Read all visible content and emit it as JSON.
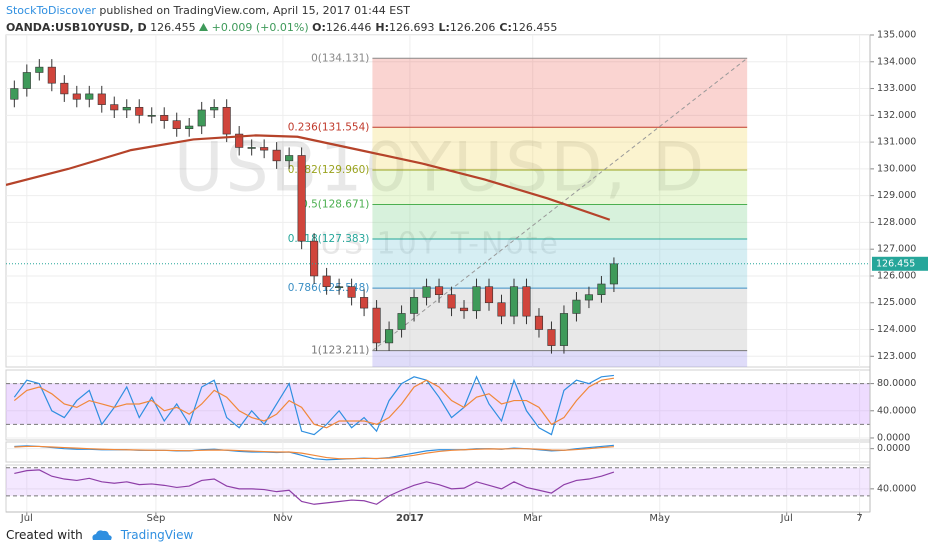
{
  "header": {
    "author": "StockToDiscover",
    "published": "published on TradingView.com, April 15, 2017 01:44 EST",
    "symbol": "OANDA:USB10YUSD, D",
    "price": 126.455,
    "change": "+0.009 (+0.01%)",
    "ohlc": [
      {
        "label": "O:",
        "value": 126.446
      },
      {
        "label": "H:",
        "value": 126.693
      },
      {
        "label": "L:",
        "value": 126.206
      },
      {
        "label": "C:",
        "value": 126.455
      }
    ]
  },
  "footer": {
    "created": "Created with",
    "brand": "TradingView"
  },
  "chart_data": [
    {
      "type": "candlestick",
      "watermark": [
        "USB10YUSD, D",
        "US 10Y T-Note"
      ],
      "up_color": "#3f9a5a",
      "down_color": "#d0453c",
      "grid": true,
      "xlim": [
        -10,
        405
      ],
      "xticks": [
        {
          "value": 0,
          "label": "Jul"
        },
        {
          "value": 62,
          "label": "Sep"
        },
        {
          "value": 123,
          "label": "Nov"
        },
        {
          "value": 184,
          "label": "2017"
        },
        {
          "value": 243,
          "label": "Mar"
        },
        {
          "value": 304,
          "label": "May"
        },
        {
          "value": 365,
          "label": "Jul"
        },
        {
          "value": 400,
          "label": "7"
        }
      ],
      "ylim": [
        122.6,
        135.0
      ],
      "yticks": [
        {
          "value": 123,
          "label": "123.000"
        },
        {
          "value": 124,
          "label": "124.000"
        },
        {
          "value": 125,
          "label": "125.000"
        },
        {
          "value": 126,
          "label": "126.000"
        },
        {
          "value": 127,
          "label": "127.000"
        },
        {
          "value": 128,
          "label": "128.000"
        },
        {
          "value": 129,
          "label": "129.000"
        },
        {
          "value": 130,
          "label": "130.000"
        },
        {
          "value": 131,
          "label": "131.000"
        },
        {
          "value": 132,
          "label": "132.000"
        },
        {
          "value": 133,
          "label": "133.000"
        },
        {
          "value": 134,
          "label": "134.000"
        },
        {
          "value": 135,
          "label": "135.000"
        }
      ],
      "x": [
        -6,
        0,
        6,
        12,
        18,
        24,
        30,
        36,
        42,
        48,
        54,
        60,
        66,
        72,
        78,
        84,
        90,
        96,
        102,
        108,
        114,
        120,
        126,
        132,
        138,
        144,
        150,
        156,
        162,
        168,
        174,
        180,
        186,
        192,
        198,
        204,
        210,
        216,
        222,
        228,
        234,
        240,
        246,
        252,
        258,
        264,
        270,
        276,
        282
      ],
      "open": [
        132.6,
        133.0,
        133.6,
        133.8,
        133.2,
        132.8,
        132.6,
        132.8,
        132.4,
        132.2,
        132.3,
        132.0,
        132.0,
        131.8,
        131.5,
        131.6,
        132.2,
        132.3,
        131.3,
        130.8,
        130.8,
        130.7,
        130.3,
        130.5,
        127.3,
        126.0,
        125.6,
        125.6,
        125.2,
        124.8,
        123.5,
        124.0,
        124.6,
        125.2,
        125.6,
        125.3,
        124.8,
        124.7,
        125.6,
        125.0,
        124.5,
        125.6,
        124.5,
        124.0,
        123.4,
        124.6,
        125.1,
        125.3,
        125.7
      ],
      "high": [
        133.3,
        133.9,
        134.1,
        134.1,
        133.5,
        133.1,
        133.1,
        133.1,
        132.7,
        132.6,
        132.6,
        132.3,
        132.3,
        132.1,
        131.9,
        132.5,
        132.6,
        132.6,
        131.6,
        131.1,
        131.1,
        131.0,
        130.8,
        130.8,
        127.6,
        126.3,
        125.9,
        125.9,
        125.5,
        125.1,
        124.3,
        124.9,
        125.5,
        125.9,
        125.9,
        125.6,
        125.1,
        125.9,
        125.9,
        125.3,
        125.9,
        125.9,
        124.8,
        124.3,
        124.9,
        125.4,
        125.6,
        126.0,
        126.693
      ],
      "low": [
        132.3,
        132.7,
        133.3,
        132.9,
        132.5,
        132.3,
        132.3,
        132.1,
        131.9,
        131.9,
        131.7,
        131.7,
        131.5,
        131.2,
        131.2,
        131.3,
        131.9,
        131.0,
        130.5,
        130.5,
        130.4,
        130.0,
        130.0,
        127.0,
        125.7,
        125.3,
        125.3,
        124.9,
        124.5,
        123.2,
        123.2,
        123.7,
        124.3,
        124.9,
        125.0,
        124.5,
        124.4,
        124.4,
        124.7,
        124.2,
        124.2,
        124.2,
        123.7,
        123.1,
        123.1,
        124.3,
        124.8,
        125.0,
        125.4
      ],
      "close": [
        133.0,
        133.6,
        133.8,
        133.2,
        132.8,
        132.6,
        132.8,
        132.4,
        132.2,
        132.3,
        132.0,
        132.0,
        131.8,
        131.5,
        131.6,
        132.2,
        132.3,
        131.3,
        130.8,
        130.8,
        130.7,
        130.3,
        130.5,
        127.3,
        126.0,
        125.6,
        125.6,
        125.2,
        124.8,
        123.5,
        124.0,
        124.6,
        125.2,
        125.6,
        125.3,
        124.8,
        124.7,
        125.6,
        125.0,
        124.5,
        125.6,
        124.5,
        124.0,
        123.4,
        124.6,
        125.1,
        125.3,
        125.7,
        126.455
      ],
      "last_price_color": "#26a69a",
      "ma": {
        "color": "#b5432a",
        "x": [
          -10,
          20,
          50,
          80,
          110,
          130,
          160,
          190,
          220,
          250,
          280
        ],
        "values": [
          129.4,
          130.0,
          130.7,
          131.1,
          131.25,
          131.2,
          130.7,
          130.2,
          129.6,
          128.9,
          128.1
        ]
      },
      "fibonacci": {
        "x": [
          166,
          346
        ],
        "trend_color": "#999999",
        "levels": [
          {
            "price": 134.131,
            "label": "0(134.131)",
            "color": "#888888"
          },
          {
            "price": 131.554,
            "label": "0.236(131.554)",
            "color": "#c0392b"
          },
          {
            "price": 129.96,
            "label": "0.382(129.960)",
            "color": "#9aa31f"
          },
          {
            "price": 128.671,
            "label": "0.5(128.671)",
            "color": "#4caf50"
          },
          {
            "price": 127.383,
            "label": "0.618(127.383)",
            "color": "#26a69a"
          },
          {
            "price": 125.548,
            "label": "0.786(125.548)",
            "color": "#3b8fc4"
          },
          {
            "price": 123.211,
            "label": "1(123.211)",
            "color": "#777777"
          }
        ],
        "band_colors": [
          "rgba(236,99,88,0.28)",
          "rgba(243,214,96,0.3)",
          "rgba(180,225,110,0.28)",
          "rgba(110,205,130,0.28)",
          "rgba(120,200,215,0.3)",
          "rgba(190,190,190,0.35)",
          "rgba(150,140,235,0.3)"
        ]
      }
    },
    {
      "type": "line",
      "ylim": [
        -3,
        100
      ],
      "yticks": [
        {
          "value": 80,
          "label": "80.0000"
        },
        {
          "value": 40,
          "label": "40.0000"
        },
        {
          "value": 0,
          "label": "0.0000"
        }
      ],
      "band": [
        20,
        80
      ],
      "band_color": "rgba(200,140,255,0.3)",
      "series": [
        {
          "color": "#2f8fe0",
          "values": [
            60,
            85,
            80,
            40,
            30,
            55,
            70,
            20,
            45,
            75,
            30,
            60,
            25,
            50,
            20,
            75,
            85,
            30,
            15,
            40,
            20,
            50,
            80,
            10,
            5,
            20,
            40,
            15,
            30,
            10,
            55,
            80,
            90,
            85,
            60,
            30,
            45,
            90,
            50,
            25,
            85,
            40,
            15,
            5,
            70,
            85,
            80,
            90,
            92
          ]
        },
        {
          "color": "#f0883a",
          "values": [
            55,
            70,
            75,
            65,
            50,
            45,
            55,
            50,
            45,
            50,
            50,
            55,
            40,
            45,
            35,
            50,
            70,
            60,
            40,
            30,
            25,
            35,
            55,
            45,
            20,
            15,
            25,
            25,
            25,
            20,
            30,
            50,
            75,
            85,
            75,
            55,
            45,
            60,
            65,
            50,
            55,
            55,
            45,
            20,
            30,
            55,
            75,
            85,
            88
          ]
        }
      ]
    },
    {
      "type": "line",
      "ylim": [
        -1.2,
        0.6
      ],
      "yticks": [
        {
          "value": 0,
          "label": "0.0000"
        }
      ],
      "series": [
        {
          "color": "#2f8fe0",
          "values": [
            0.2,
            0.25,
            0.2,
            0.1,
            0,
            -0.05,
            -0.05,
            -0.1,
            -0.1,
            -0.1,
            -0.15,
            -0.15,
            -0.15,
            -0.2,
            -0.2,
            -0.1,
            -0.05,
            -0.15,
            -0.25,
            -0.3,
            -0.3,
            -0.35,
            -0.3,
            -0.6,
            -0.9,
            -1.0,
            -0.95,
            -0.9,
            -0.85,
            -0.9,
            -0.8,
            -0.6,
            -0.4,
            -0.2,
            -0.1,
            -0.1,
            -0.1,
            0,
            0,
            -0.05,
            0.05,
            0,
            -0.1,
            -0.2,
            -0.15,
            0,
            0.1,
            0.2,
            0.3
          ]
        },
        {
          "color": "#f0883a",
          "values": [
            0.15,
            0.2,
            0.2,
            0.15,
            0.1,
            0.05,
            0,
            -0.05,
            -0.08,
            -0.1,
            -0.12,
            -0.14,
            -0.15,
            -0.17,
            -0.18,
            -0.15,
            -0.12,
            -0.13,
            -0.17,
            -0.22,
            -0.26,
            -0.3,
            -0.3,
            -0.4,
            -0.6,
            -0.8,
            -0.9,
            -0.9,
            -0.88,
            -0.88,
            -0.85,
            -0.75,
            -0.6,
            -0.4,
            -0.25,
            -0.15,
            -0.1,
            -0.05,
            -0.02,
            -0.03,
            0,
            0,
            -0.05,
            -0.12,
            -0.14,
            -0.08,
            0,
            0.1,
            0.18
          ]
        }
      ]
    },
    {
      "type": "line",
      "ylim": [
        7,
        74
      ],
      "yticks": [
        {
          "value": 40,
          "label": "40.0000"
        }
      ],
      "band": [
        30,
        70
      ],
      "band_color": "rgba(200,140,255,0.2)",
      "series": [
        {
          "color": "#8e3fa8",
          "values": [
            62,
            66,
            67,
            58,
            54,
            52,
            55,
            50,
            48,
            50,
            46,
            47,
            45,
            42,
            44,
            52,
            54,
            44,
            40,
            40,
            39,
            36,
            38,
            22,
            18,
            20,
            22,
            24,
            23,
            18,
            30,
            38,
            45,
            50,
            46,
            40,
            41,
            50,
            45,
            40,
            50,
            42,
            38,
            34,
            46,
            52,
            54,
            58,
            64
          ]
        }
      ]
    }
  ]
}
